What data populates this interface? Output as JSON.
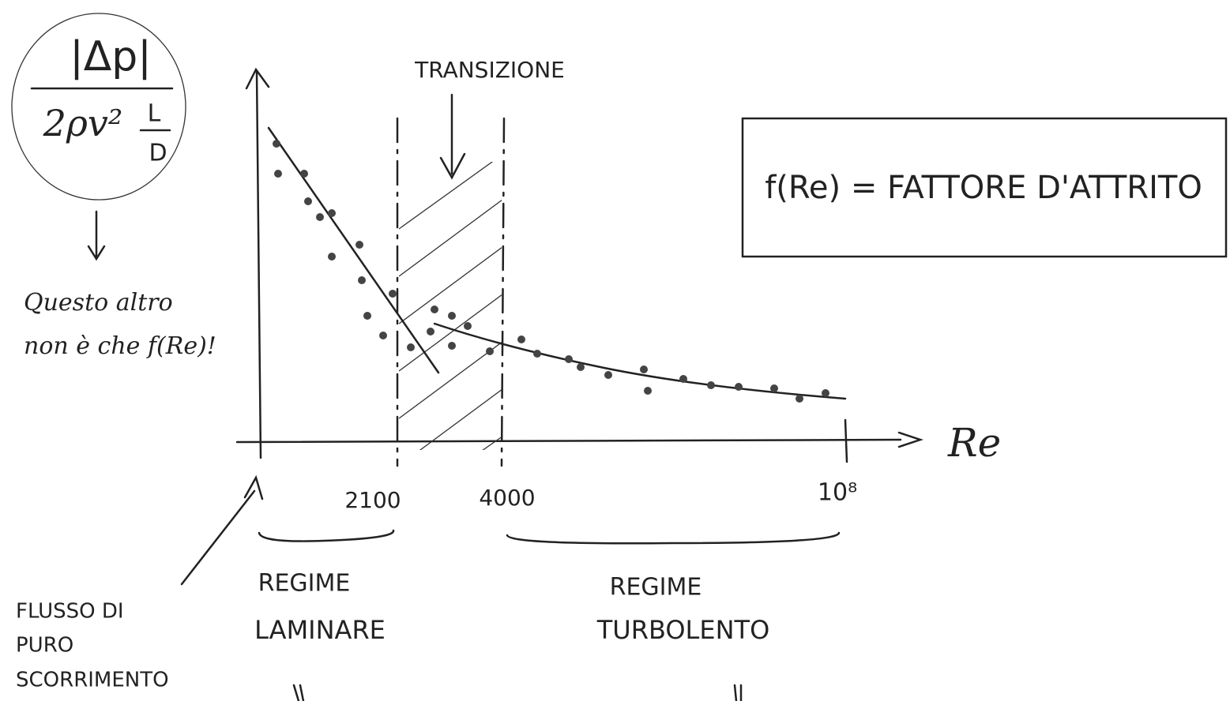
{
  "formula": {
    "numerator": "|Δp|",
    "denominator": "2ρv²",
    "length": "L",
    "diameter": "D"
  },
  "note": [
    "Questo altro",
    "non è che f(Re)!"
  ],
  "transition_label": "TRANSIZIONE",
  "definition": "f(Re) = FATTORE D'ATTRITO",
  "axis": {
    "x_label": "Re",
    "ticks": [
      "2100",
      "4000",
      "10⁸"
    ]
  },
  "regions": [
    {
      "label": [
        "REGIME",
        "LAMINARE"
      ]
    },
    {
      "label": [
        "REGIME",
        "TURBOLENTO"
      ]
    }
  ],
  "flow_note": [
    "FLUSSO DI",
    "PURO",
    "SCORRIMENTO"
  ]
}
